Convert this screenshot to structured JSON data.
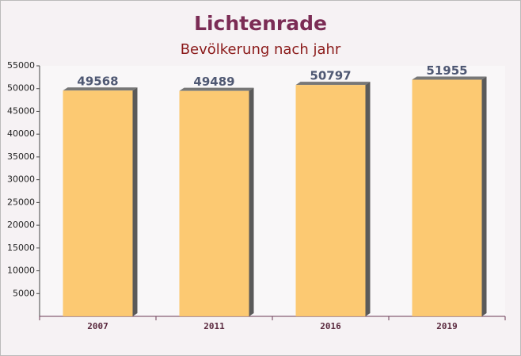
{
  "chart_data": {
    "type": "bar",
    "title": "Lichtenrade",
    "subtitle": "Bevölkerung nach jahr",
    "categories": [
      "2007",
      "2011",
      "2016",
      "2019"
    ],
    "values": [
      49568,
      49489,
      50797,
      51955
    ],
    "color": "#fcc466",
    "ylim": [
      0,
      55000
    ],
    "yticks": [
      5000,
      10000,
      15000,
      20000,
      25000,
      30000,
      35000,
      40000,
      45000,
      50000,
      55000
    ],
    "grid": false
  }
}
